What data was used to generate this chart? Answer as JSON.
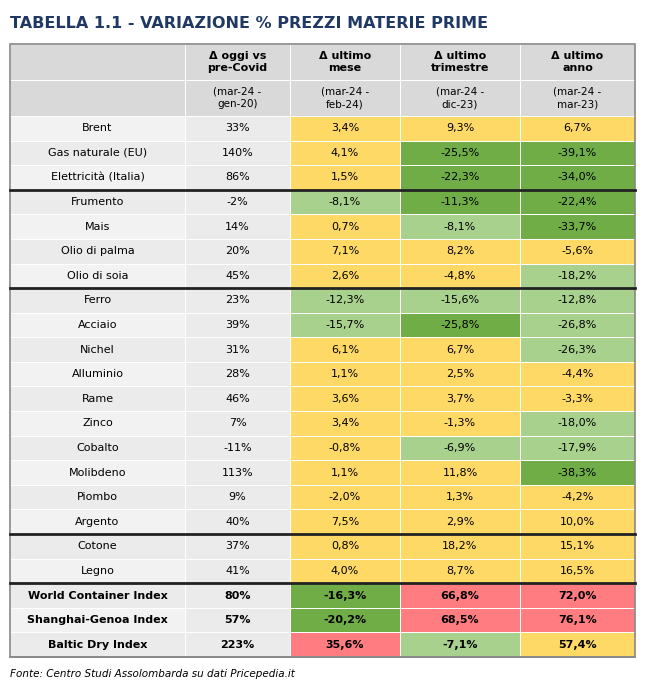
{
  "title": "TABELLA 1.1 - VARIAZIONE % PREZZI MATERIE PRIME",
  "title_color": "#1F3864",
  "col_headers": [
    "Δ oggi vs\npre-Covid",
    "Δ ultimo\nmese",
    "Δ ultimo\ntrimestre",
    "Δ ultimo\nanno"
  ],
  "col_subheaders": [
    "(mar-24 -\ngen-20)",
    "(mar-24 -\nfeb-24)",
    "(mar-24 -\ndic-23)",
    "(mar-24 -\nmar-23)"
  ],
  "rows": [
    {
      "label": "Brent",
      "bold": false,
      "group_sep_before": false,
      "values": [
        "33%",
        "3,4%",
        "9,3%",
        "6,7%"
      ],
      "colors": [
        "none",
        "yellow",
        "yellow",
        "yellow"
      ]
    },
    {
      "label": "Gas naturale (EU)",
      "bold": false,
      "group_sep_before": false,
      "values": [
        "140%",
        "4,1%",
        "-25,5%",
        "-39,1%"
      ],
      "colors": [
        "none",
        "yellow",
        "green",
        "green"
      ]
    },
    {
      "label": "Elettricità (Italia)",
      "bold": false,
      "group_sep_before": false,
      "values": [
        "86%",
        "1,5%",
        "-22,3%",
        "-34,0%"
      ],
      "colors": [
        "none",
        "yellow",
        "green",
        "green"
      ]
    },
    {
      "label": "Frumento",
      "bold": false,
      "group_sep_before": true,
      "values": [
        "-2%",
        "-8,1%",
        "-11,3%",
        "-22,4%"
      ],
      "colors": [
        "none",
        "lgreen",
        "green",
        "green"
      ]
    },
    {
      "label": "Mais",
      "bold": false,
      "group_sep_before": false,
      "values": [
        "14%",
        "0,7%",
        "-8,1%",
        "-33,7%"
      ],
      "colors": [
        "none",
        "yellow",
        "lgreen",
        "green"
      ]
    },
    {
      "label": "Olio di palma",
      "bold": false,
      "group_sep_before": false,
      "values": [
        "20%",
        "7,1%",
        "8,2%",
        "-5,6%"
      ],
      "colors": [
        "none",
        "yellow",
        "yellow",
        "yellow"
      ]
    },
    {
      "label": "Olio di soia",
      "bold": false,
      "group_sep_before": false,
      "values": [
        "45%",
        "2,6%",
        "-4,8%",
        "-18,2%"
      ],
      "colors": [
        "none",
        "yellow",
        "yellow",
        "lgreen"
      ]
    },
    {
      "label": "Ferro",
      "bold": false,
      "group_sep_before": true,
      "values": [
        "23%",
        "-12,3%",
        "-15,6%",
        "-12,8%"
      ],
      "colors": [
        "none",
        "lgreen",
        "lgreen",
        "lgreen"
      ]
    },
    {
      "label": "Acciaio",
      "bold": false,
      "group_sep_before": false,
      "values": [
        "39%",
        "-15,7%",
        "-25,8%",
        "-26,8%"
      ],
      "colors": [
        "none",
        "lgreen",
        "green",
        "lgreen"
      ]
    },
    {
      "label": "Nichel",
      "bold": false,
      "group_sep_before": false,
      "values": [
        "31%",
        "6,1%",
        "6,7%",
        "-26,3%"
      ],
      "colors": [
        "none",
        "yellow",
        "yellow",
        "lgreen"
      ]
    },
    {
      "label": "Alluminio",
      "bold": false,
      "group_sep_before": false,
      "values": [
        "28%",
        "1,1%",
        "2,5%",
        "-4,4%"
      ],
      "colors": [
        "none",
        "yellow",
        "yellow",
        "yellow"
      ]
    },
    {
      "label": "Rame",
      "bold": false,
      "group_sep_before": false,
      "values": [
        "46%",
        "3,6%",
        "3,7%",
        "-3,3%"
      ],
      "colors": [
        "none",
        "yellow",
        "yellow",
        "yellow"
      ]
    },
    {
      "label": "Zinco",
      "bold": false,
      "group_sep_before": false,
      "values": [
        "7%",
        "3,4%",
        "-1,3%",
        "-18,0%"
      ],
      "colors": [
        "none",
        "yellow",
        "yellow",
        "lgreen"
      ]
    },
    {
      "label": "Cobalto",
      "bold": false,
      "group_sep_before": false,
      "values": [
        "-11%",
        "-0,8%",
        "-6,9%",
        "-17,9%"
      ],
      "colors": [
        "none",
        "yellow",
        "lgreen",
        "lgreen"
      ]
    },
    {
      "label": "Molibdeno",
      "bold": false,
      "group_sep_before": false,
      "values": [
        "113%",
        "1,1%",
        "11,8%",
        "-38,3%"
      ],
      "colors": [
        "none",
        "yellow",
        "yellow",
        "green"
      ]
    },
    {
      "label": "Piombo",
      "bold": false,
      "group_sep_before": false,
      "values": [
        "9%",
        "-2,0%",
        "1,3%",
        "-4,2%"
      ],
      "colors": [
        "none",
        "yellow",
        "yellow",
        "yellow"
      ]
    },
    {
      "label": "Argento",
      "bold": false,
      "group_sep_before": false,
      "values": [
        "40%",
        "7,5%",
        "2,9%",
        "10,0%"
      ],
      "colors": [
        "none",
        "yellow",
        "yellow",
        "yellow"
      ]
    },
    {
      "label": "Cotone",
      "bold": false,
      "group_sep_before": true,
      "values": [
        "37%",
        "0,8%",
        "18,2%",
        "15,1%"
      ],
      "colors": [
        "none",
        "yellow",
        "yellow",
        "yellow"
      ]
    },
    {
      "label": "Legno",
      "bold": false,
      "group_sep_before": false,
      "values": [
        "41%",
        "4,0%",
        "8,7%",
        "16,5%"
      ],
      "colors": [
        "none",
        "yellow",
        "yellow",
        "yellow"
      ]
    },
    {
      "label": "World Container Index",
      "bold": true,
      "group_sep_before": true,
      "values": [
        "80%",
        "-16,3%",
        "66,8%",
        "72,0%"
      ],
      "colors": [
        "none",
        "green",
        "red",
        "red"
      ]
    },
    {
      "label": "Shanghai-Genoa Index",
      "bold": true,
      "group_sep_before": false,
      "values": [
        "57%",
        "-20,2%",
        "68,5%",
        "76,1%"
      ],
      "colors": [
        "none",
        "green",
        "red",
        "red"
      ]
    },
    {
      "label": "Baltic Dry Index",
      "bold": true,
      "group_sep_before": false,
      "values": [
        "223%",
        "35,6%",
        "-7,1%",
        "57,4%"
      ],
      "colors": [
        "none",
        "red",
        "lgreen",
        "yellow"
      ]
    }
  ],
  "color_map": {
    "none": "#EBEBEB",
    "yellow": "#FFD966",
    "lgreen": "#A9D18E",
    "green": "#70AD47",
    "red": "#FF7C80"
  },
  "footer": "Fonte: Centro Studi Assolombarda su dati Pricepedia.it",
  "bg_color": "#FFFFFF",
  "header_bg": "#D9D9D9",
  "label_col_bg": "#EBEBEB"
}
